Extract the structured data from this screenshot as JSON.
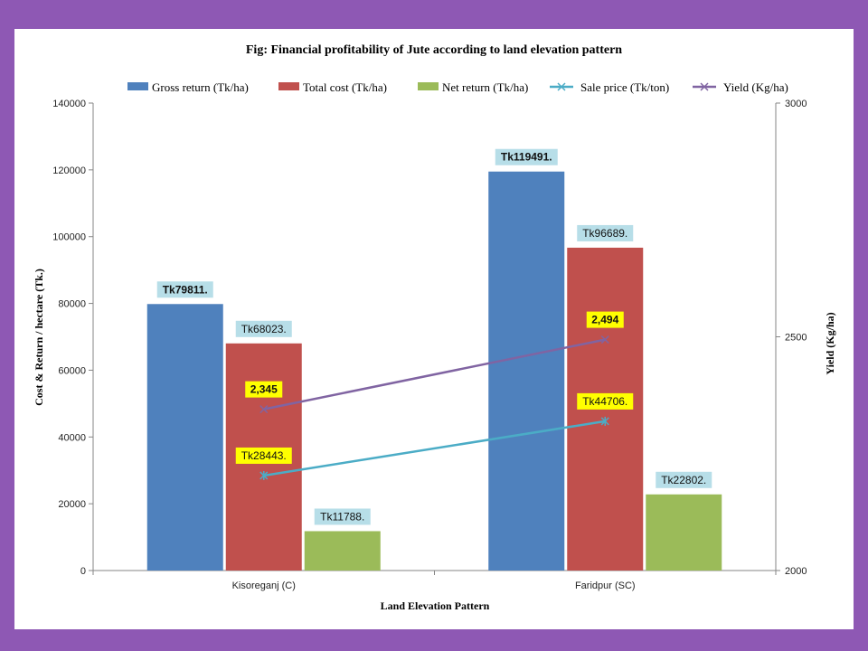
{
  "colors": {
    "frame": "#8e58b4",
    "gross": "#4f81bd",
    "cost": "#c0504d",
    "net": "#9bbb59",
    "sale": "#4bacc6",
    "yield": "#8064a2",
    "label_bg": "#b7dee8",
    "label_highlight": "#ffff00"
  },
  "chart_data": {
    "type": "bar",
    "title": "Fig: Financial profitability of Jute according to land elevation pattern",
    "xlabel": "Land Elevation Pattern",
    "ylabel": "Cost & Return / hectare (Tk.)",
    "y2label": "Yield (Kg/ha)",
    "ylim": [
      0,
      140000
    ],
    "y2lim": [
      2000,
      3000
    ],
    "yticks": [
      "0",
      "20000",
      "40000",
      "60000",
      "80000",
      "100000",
      "120000",
      "140000"
    ],
    "y2ticks": [
      "2000",
      "2500",
      "3000"
    ],
    "categories": [
      "Kisoreganj (C)",
      "Faridpur (SC)"
    ],
    "legend_position": "top",
    "series": [
      {
        "name": "Gross return (Tk/ha)",
        "kind": "bar",
        "axis": "left",
        "color_key": "gross",
        "values": [
          79811,
          119491
        ],
        "labels": [
          "Tk79811.",
          "Tk119491."
        ],
        "label_bold": true,
        "label_highlight": [
          false,
          false
        ]
      },
      {
        "name": "Total cost (Tk/ha)",
        "kind": "bar",
        "axis": "left",
        "color_key": "cost",
        "values": [
          68023,
          96689
        ],
        "labels": [
          "Tk68023.",
          "Tk96689."
        ],
        "label_bold": false,
        "label_highlight": [
          false,
          false
        ]
      },
      {
        "name": "Net return (Tk/ha)",
        "kind": "bar",
        "axis": "left",
        "color_key": "net",
        "values": [
          11788,
          22802
        ],
        "labels": [
          "Tk11788.",
          "Tk22802."
        ],
        "label_bold": false,
        "label_highlight": [
          false,
          false
        ]
      },
      {
        "name": "Sale price (Tk/ton)",
        "kind": "line",
        "axis": "left",
        "color_key": "sale",
        "marker": "asterisk",
        "values": [
          28443,
          44706
        ],
        "labels": [
          "Tk28443.",
          "Tk44706."
        ],
        "label_bold": false,
        "label_highlight": [
          true,
          true
        ]
      },
      {
        "name": "Yield (Kg/ha)",
        "kind": "line",
        "axis": "right",
        "color_key": "yield",
        "marker": "x",
        "values": [
          2345,
          2494
        ],
        "labels": [
          "2,345",
          "2,494"
        ],
        "label_bold": true,
        "label_highlight": [
          true,
          true
        ]
      }
    ]
  }
}
